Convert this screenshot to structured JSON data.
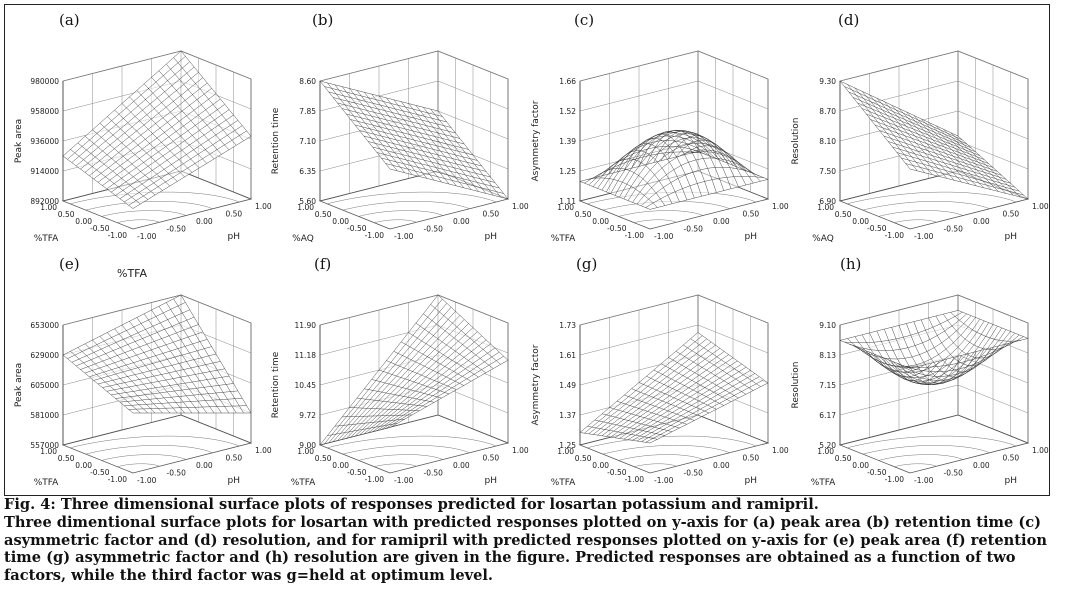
{
  "figure": {
    "panels": [
      {
        "label": "(a)",
        "extra_label": "",
        "ylabel": "Peak area",
        "xlabel": "%TFA",
        "zlabel": "pH",
        "yticks": [
          "892000",
          "914000",
          "936000",
          "958000",
          "980000"
        ],
        "xticks": [
          "-1.00",
          "-0.50",
          "0.00",
          "0.50",
          "1.00"
        ],
        "zticks": [
          "-1.00",
          "-0.50",
          "0.00",
          "0.50",
          "1.00"
        ]
      },
      {
        "label": "(b)",
        "extra_label": "",
        "ylabel": "Retention time",
        "xlabel": "%AQ",
        "zlabel": "pH",
        "yticks": [
          "5.60",
          "6.35",
          "7.10",
          "7.85",
          "8.60"
        ],
        "xticks": [
          "-1.00",
          "-0.50",
          "0.00",
          "0.50",
          "1.00"
        ],
        "zticks": [
          "-1.00",
          "-0.50",
          "0.00",
          "0.50",
          "1.00"
        ]
      },
      {
        "label": "(c)",
        "extra_label": "",
        "ylabel": "Asymmetry factor",
        "xlabel": "%TFA",
        "zlabel": "pH",
        "yticks": [
          "1.11",
          "1.25",
          "1.39",
          "1.52",
          "1.66"
        ],
        "xticks": [
          "-1.00",
          "-0.50",
          "0.00",
          "0.50",
          "1.00"
        ],
        "zticks": [
          "-1.00",
          "-0.50",
          "0.00",
          "0.50",
          "1.00"
        ]
      },
      {
        "label": "(d)",
        "extra_label": "",
        "ylabel": "Resolution",
        "xlabel": "%AQ",
        "zlabel": "pH",
        "yticks": [
          "6.90",
          "7.50",
          "8.10",
          "8.70",
          "9.30"
        ],
        "xticks": [
          "-1.00",
          "-0.50",
          "0.00",
          "0.50",
          "1.00"
        ],
        "zticks": [
          "-1.00",
          "-0.50",
          "0.00",
          "0.50",
          "1.00"
        ]
      },
      {
        "label": "(e)",
        "extra_label": "%TFA",
        "ylabel": "Peak area",
        "xlabel": "%TFA",
        "zlabel": "pH",
        "yticks": [
          "557000",
          "581000",
          "605000",
          "629000",
          "653000"
        ],
        "xticks": [
          "-1.00",
          "-0.50",
          "0.00",
          "0.50",
          "1.00"
        ],
        "zticks": [
          "-1.00",
          "-0.50",
          "0.00",
          "0.50",
          "1.00"
        ]
      },
      {
        "label": "(f)",
        "extra_label": "",
        "ylabel": "Retention time",
        "xlabel": "%TFA",
        "zlabel": "pH",
        "yticks": [
          "9.00",
          "9.72",
          "10.45",
          "11.18",
          "11.90"
        ],
        "xticks": [
          "-1.00",
          "-0.50",
          "0.00",
          "0.50",
          "1.00"
        ],
        "zticks": [
          "-1.00",
          "-0.50",
          "0.00",
          "0.50",
          "1.00"
        ]
      },
      {
        "label": "(g)",
        "extra_label": "",
        "ylabel": "Asymmetry factor",
        "xlabel": "%TFA",
        "zlabel": "pH",
        "yticks": [
          "1.25",
          "1.37",
          "1.49",
          "1.61",
          "1.73"
        ],
        "xticks": [
          "-1.00",
          "-0.50",
          "0.00",
          "0.50",
          "1.00"
        ],
        "zticks": [
          "-1.00",
          "-0.50",
          "0.00",
          "0.50",
          "1.00"
        ]
      },
      {
        "label": "(h)",
        "extra_label": "",
        "ylabel": "Resolution",
        "xlabel": "%TFA",
        "zlabel": "pH",
        "yticks": [
          "5.20",
          "6.17",
          "7.15",
          "8.13",
          "9.10"
        ],
        "xticks": [
          "-1.00",
          "-0.50",
          "0.00",
          "0.50",
          "1.00"
        ],
        "zticks": [
          "-1.00",
          "-0.50",
          "0.00",
          "0.50",
          "1.00"
        ]
      }
    ]
  },
  "caption": {
    "title": "Fig. 4: Three dimensional surface plots of responses predicted for losartan potassium and ramipril.",
    "body": "Three dimentional surface plots for losartan with predicted responses plotted on y-axis for (a) peak area (b) retention time (c) asymmetric factor and (d) resolution,  and for ramipril with predicted responses plotted on y-axis for (e) peak area (f) retention time (g) asymmetric factor and (h) resolution are given in the figure. Predicted responses are obtained as a function of two factors, while the third factor was g=held at optimum level."
  },
  "chart_data": [
    {
      "type": "surface",
      "panel": "(a)",
      "title": "",
      "xlabel": "%TFA",
      "ylabel": "Peak area",
      "zlabel": "pH",
      "x_range": [
        -1,
        1
      ],
      "z_range": [
        -1,
        1
      ],
      "ylim": [
        892000,
        980000
      ],
      "grid": true,
      "corner_values": {
        "x-1_z-1": 907000,
        "x1_z-1": 925000,
        "x-1_z1": 938000,
        "x1_z1": 980000
      }
    },
    {
      "type": "surface",
      "panel": "(b)",
      "title": "",
      "xlabel": "%AQ",
      "ylabel": "Retention time",
      "zlabel": "pH",
      "x_range": [
        -1,
        1
      ],
      "z_range": [
        -1,
        1
      ],
      "ylim": [
        5.6,
        8.6
      ],
      "grid": true,
      "corner_values": {
        "x-1_z-1": 7.1,
        "x1_z-1": 8.6,
        "x-1_z1": 5.6,
        "x1_z1": 7.1
      }
    },
    {
      "type": "surface",
      "panel": "(c)",
      "title": "",
      "xlabel": "%TFA",
      "ylabel": "Asymmetry factor",
      "zlabel": "pH",
      "x_range": [
        -1,
        1
      ],
      "z_range": [
        -1,
        1
      ],
      "ylim": [
        1.11,
        1.66
      ],
      "grid": true,
      "corner_values": {
        "x-1_z-1": 1.2,
        "x1_z-1": 1.2,
        "x-1_z1": 1.2,
        "x1_z1": 1.2
      },
      "center_value": 1.42
    },
    {
      "type": "surface",
      "panel": "(d)",
      "title": "",
      "xlabel": "%AQ",
      "ylabel": "Resolution",
      "zlabel": "pH",
      "x_range": [
        -1,
        1
      ],
      "z_range": [
        -1,
        1
      ],
      "ylim": [
        6.9,
        9.3
      ],
      "grid": true,
      "corner_values": {
        "x-1_z-1": 8.1,
        "x1_z-1": 9.3,
        "x-1_z1": 6.9,
        "x1_z1": 7.6
      }
    },
    {
      "type": "surface",
      "panel": "(e)",
      "title": "",
      "xlabel": "%TFA",
      "ylabel": "Peak area",
      "zlabel": "pH",
      "x_range": [
        -1,
        1
      ],
      "z_range": [
        -1,
        1
      ],
      "ylim": [
        557000,
        653000
      ],
      "grid": true,
      "corner_values": {
        "x-1_z-1": 605000,
        "x1_z-1": 629000,
        "x-1_z1": 581000,
        "x1_z1": 653000
      }
    },
    {
      "type": "surface",
      "panel": "(f)",
      "title": "",
      "xlabel": "%TFA",
      "ylabel": "Retention time",
      "zlabel": "pH",
      "x_range": [
        -1,
        1
      ],
      "z_range": [
        -1,
        1
      ],
      "ylim": [
        9.0,
        11.9
      ],
      "grid": true,
      "corner_values": {
        "x-1_z-1": 10.1,
        "x1_z-1": 9.0,
        "x-1_z1": 11.0,
        "x1_z1": 11.9
      }
    },
    {
      "type": "surface",
      "panel": "(g)",
      "title": "",
      "xlabel": "%TFA",
      "ylabel": "Asymmetry factor",
      "zlabel": "pH",
      "x_range": [
        -1,
        1
      ],
      "z_range": [
        -1,
        1
      ],
      "ylim": [
        1.25,
        1.73
      ],
      "grid": true,
      "corner_values": {
        "x-1_z-1": 1.37,
        "x1_z-1": 1.3,
        "x-1_z1": 1.49,
        "x1_z1": 1.58
      }
    },
    {
      "type": "surface",
      "panel": "(h)",
      "title": "",
      "xlabel": "%TFA",
      "ylabel": "Resolution",
      "zlabel": "pH",
      "x_range": [
        -1,
        1
      ],
      "z_range": [
        -1,
        1
      ],
      "ylim": [
        5.2,
        9.1
      ],
      "grid": true,
      "corner_values": {
        "x-1_z-1": 8.6,
        "x1_z-1": 8.6,
        "x-1_z1": 8.6,
        "x1_z1": 8.6
      },
      "center_value": 7.2
    }
  ]
}
